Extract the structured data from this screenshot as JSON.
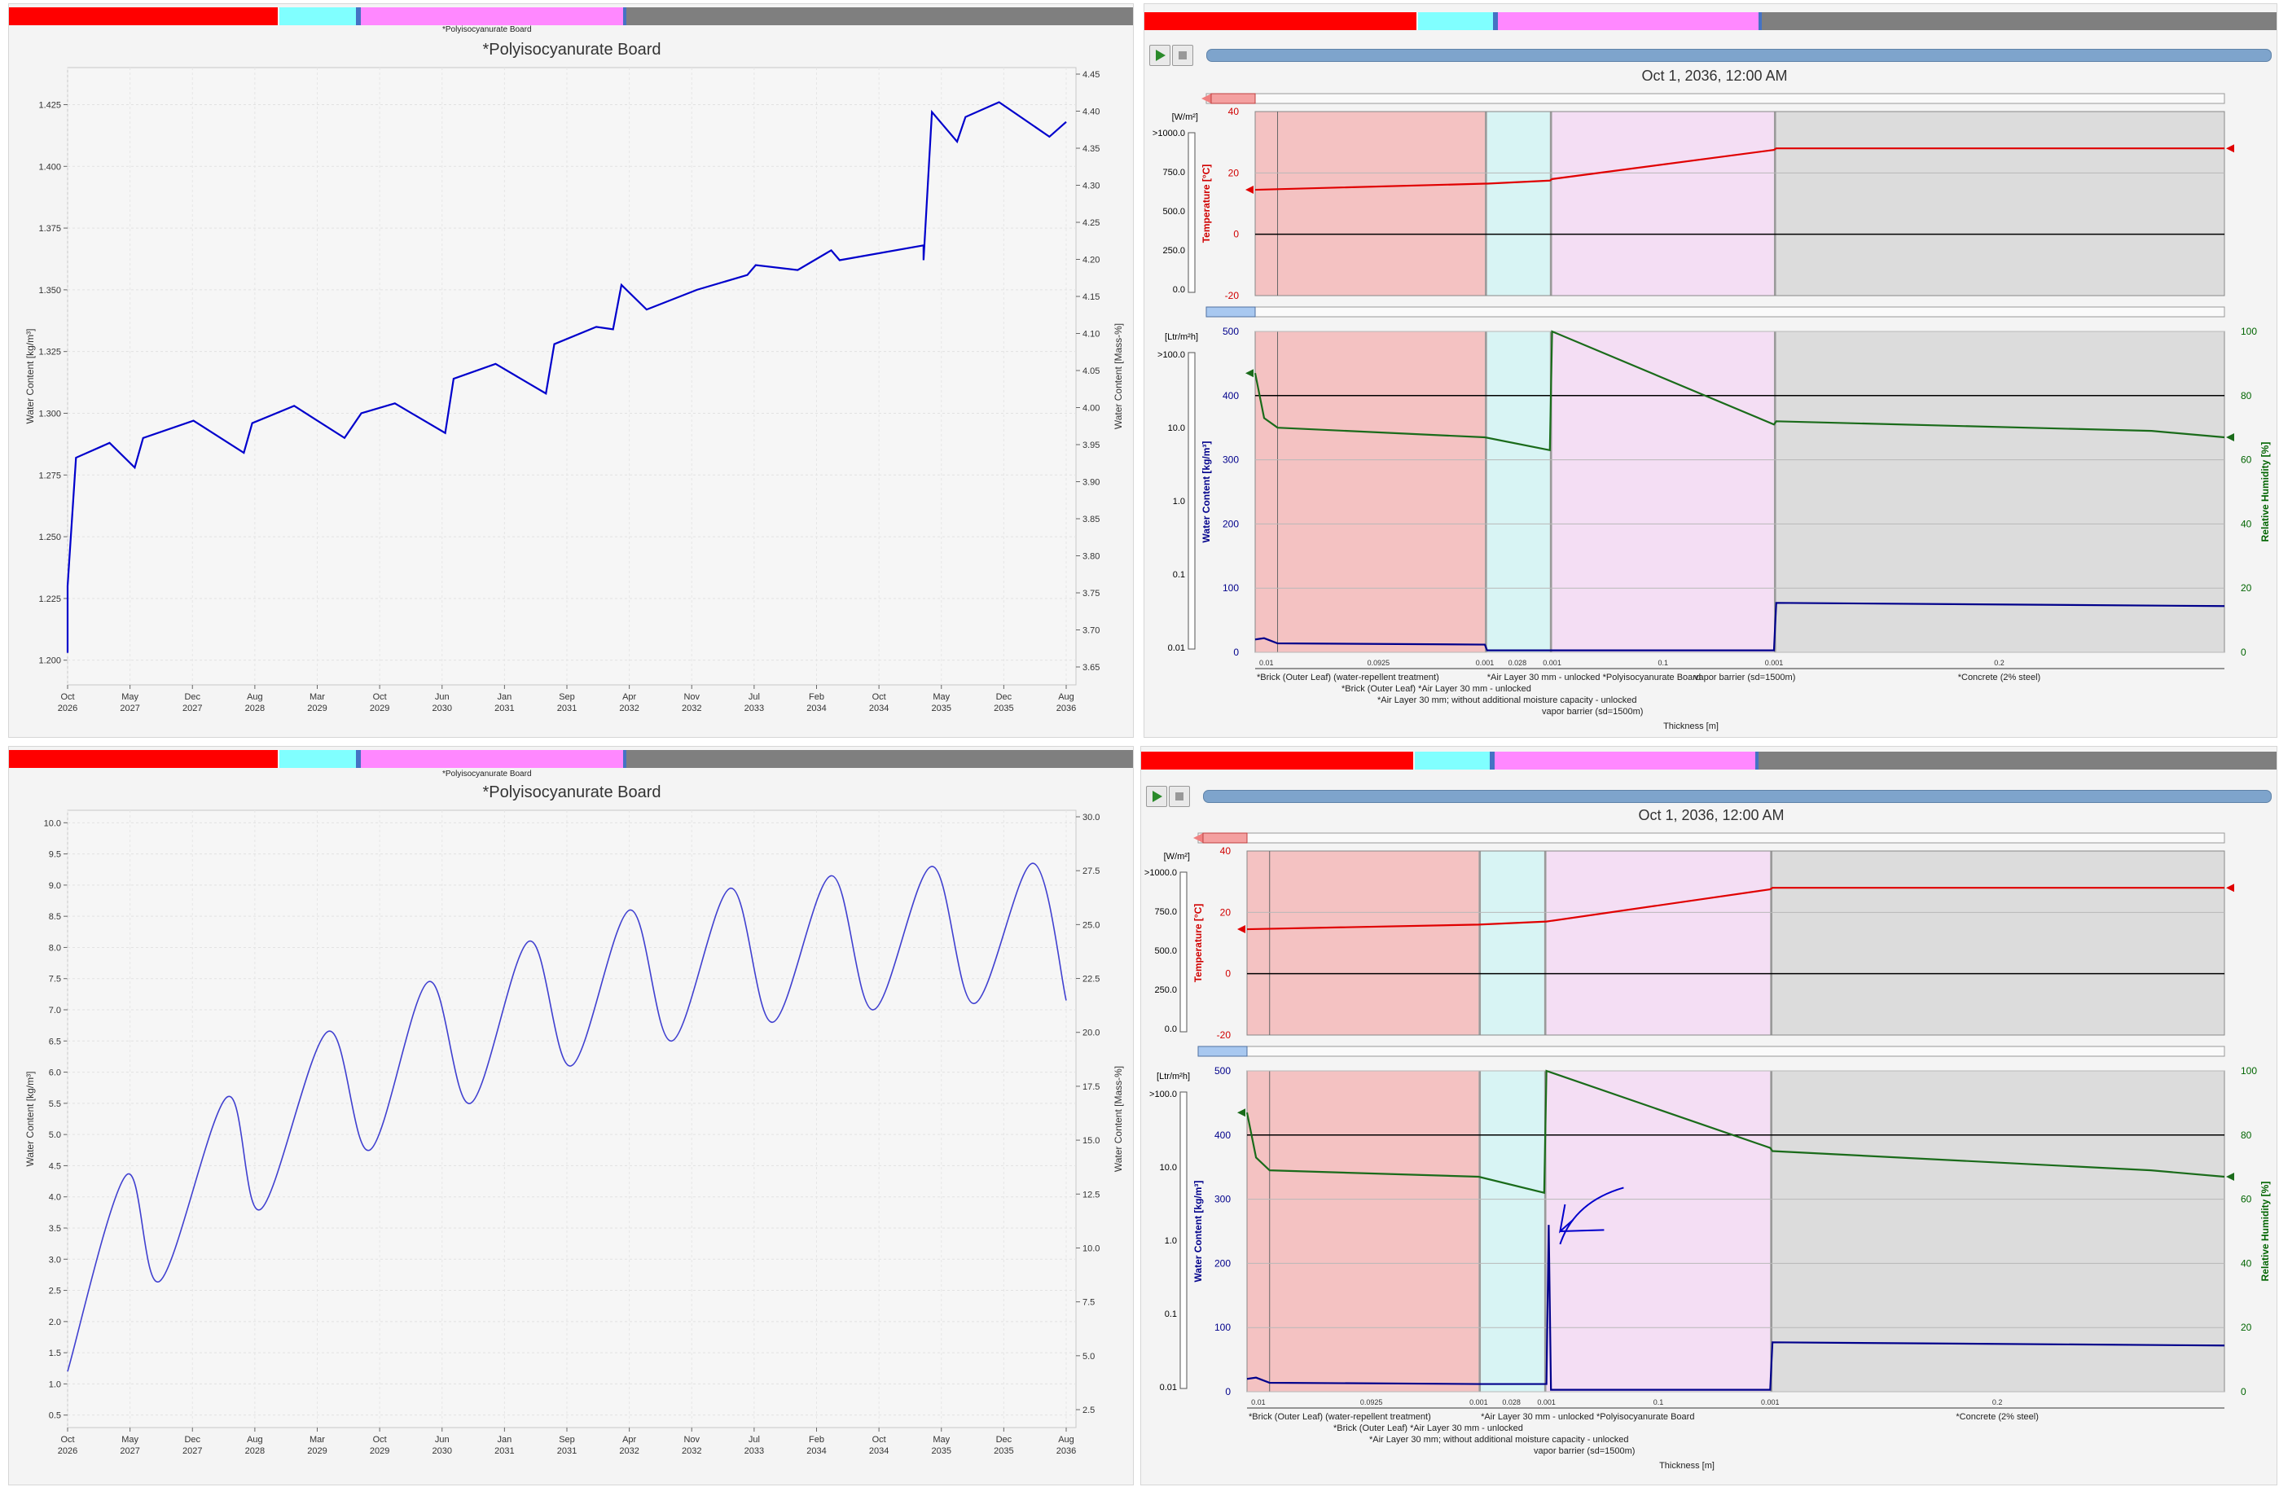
{
  "layer_colors": {
    "brick": "#ff0000",
    "air": "#80ffff",
    "board": "#ff88ff",
    "gap": "#4472c4",
    "concrete": "#7f7f7f"
  },
  "board_short_label": "*Polyisocyanurate Board",
  "time_series_top": {
    "title": "*Polyisocyanurate Board",
    "ylabel_left": "Water Content [kg/m³]",
    "ylabel_right": "Water Content [Mass-%]",
    "left_ticks": [
      "1.200",
      "1.225",
      "1.250",
      "1.275",
      "1.300",
      "1.325",
      "1.350",
      "1.375",
      "1.400",
      "1.425"
    ],
    "right_ticks": [
      "3.65",
      "3.70",
      "3.75",
      "3.80",
      "3.85",
      "3.90",
      "3.95",
      "4.00",
      "4.05",
      "4.10",
      "4.15",
      "4.20",
      "4.25",
      "4.30",
      "4.35",
      "4.40",
      "4.45"
    ],
    "x_ticks": [
      [
        "Oct",
        "2026"
      ],
      [
        "May",
        "2027"
      ],
      [
        "Dec",
        "2027"
      ],
      [
        "Aug",
        "2028"
      ],
      [
        "Mar",
        "2029"
      ],
      [
        "Oct",
        "2029"
      ],
      [
        "Jun",
        "2030"
      ],
      [
        "Jan",
        "2031"
      ],
      [
        "Sep",
        "2031"
      ],
      [
        "Apr",
        "2032"
      ],
      [
        "Nov",
        "2032"
      ],
      [
        "Jul",
        "2033"
      ],
      [
        "Feb",
        "2034"
      ],
      [
        "Oct",
        "2034"
      ],
      [
        "May",
        "2035"
      ],
      [
        "Dec",
        "2035"
      ],
      [
        "Aug",
        "2036"
      ]
    ]
  },
  "time_series_bottom": {
    "title": "*Polyisocyanurate Board",
    "ylabel_left": "Water Content [kg/m³]",
    "ylabel_right": "Water Content [Mass-%]",
    "left_ticks": [
      "0.5",
      "1.0",
      "1.5",
      "2.0",
      "2.5",
      "3.0",
      "3.5",
      "4.0",
      "4.5",
      "5.0",
      "5.5",
      "6.0",
      "6.5",
      "7.0",
      "7.5",
      "8.0",
      "8.5",
      "9.0",
      "9.5",
      "10.0"
    ],
    "right_ticks": [
      "2.5",
      "5.0",
      "7.5",
      "10.0",
      "12.5",
      "15.0",
      "17.5",
      "20.0",
      "22.5",
      "25.0",
      "27.5",
      "30.0"
    ],
    "x_ticks": [
      [
        "Oct",
        "2026"
      ],
      [
        "May",
        "2027"
      ],
      [
        "Dec",
        "2027"
      ],
      [
        "Aug",
        "2028"
      ],
      [
        "Mar",
        "2029"
      ],
      [
        "Oct",
        "2029"
      ],
      [
        "Jun",
        "2030"
      ],
      [
        "Jan",
        "2031"
      ],
      [
        "Sep",
        "2031"
      ],
      [
        "Apr",
        "2032"
      ],
      [
        "Nov",
        "2032"
      ],
      [
        "Jul",
        "2033"
      ],
      [
        "Feb",
        "2034"
      ],
      [
        "Oct",
        "2034"
      ],
      [
        "May",
        "2035"
      ],
      [
        "Dec",
        "2035"
      ],
      [
        "Aug",
        "2036"
      ]
    ]
  },
  "profile": {
    "timestamp": "Oct 1, 2036, 12:00 AM",
    "heat_unit": "[W/m²]",
    "heat_ticks": [
      ">1000.0",
      "750.0",
      "500.0",
      "250.0",
      "0.0"
    ],
    "temp_label": "Temperature [°C]",
    "temp_ticks": [
      "40",
      "20",
      "0",
      "-20"
    ],
    "flux_unit": "[Ltr/m²h]",
    "flux_ticks": [
      ">100.0",
      "10.0",
      "1.0",
      "0.1",
      "0.01"
    ],
    "wc_label": "Water Content [kg/m³]",
    "wc_ticks": [
      "500",
      "400",
      "300",
      "200",
      "100",
      "0"
    ],
    "rh_label": "Relative Humidity [%]",
    "rh_ticks": [
      "100",
      "80",
      "60",
      "40",
      "20",
      "0"
    ],
    "thickness_label": "Thickness [m]",
    "dims": [
      "0.01",
      "0.0925",
      "0.001",
      "0.028",
      "0.001",
      "0.1",
      "0.001",
      "0.2"
    ],
    "layer_notes": [
      "*Brick (Outer Leaf) (water-repellent treatment)",
      "*Brick (Outer Leaf)  *Air Layer 30 mm - unlocked",
      "*Air Layer 30 mm; without additional moisture capacity - unlocked",
      "vapor barrier  (sd=1500m)",
      "*Air Layer 30 mm - unlocked *Polyisocyanurate Board",
      "*Concrete (2% steel)"
    ],
    "vapor_note_top": "vapor barrier  (sd=1500m)"
  },
  "chart_data": [
    {
      "type": "line",
      "title": "*Polyisocyanurate Board",
      "xlabel": "",
      "ylabel": "Water Content [kg/m³]",
      "ylabel_right": "Water Content [Mass-%]",
      "x": [
        "2026-10",
        "2026-10",
        "2026-11",
        "2027-03",
        "2027-06",
        "2027-07",
        "2028-01",
        "2028-07",
        "2028-08",
        "2029-01",
        "2029-07",
        "2029-09",
        "2030-01",
        "2030-07",
        "2030-08",
        "2031-01",
        "2031-07",
        "2031-08",
        "2032-01",
        "2032-03",
        "2032-04",
        "2032-07",
        "2033-01",
        "2033-07",
        "2033-08",
        "2034-01",
        "2034-05",
        "2034-06",
        "2035-04",
        "2035-04",
        "2035-05",
        "2035-08",
        "2035-09",
        "2036-01",
        "2036-07",
        "2036-09"
      ],
      "values": [
        1.203,
        1.23,
        1.282,
        1.288,
        1.278,
        1.29,
        1.297,
        1.284,
        1.296,
        1.303,
        1.29,
        1.3,
        1.304,
        1.292,
        1.314,
        1.32,
        1.308,
        1.328,
        1.335,
        1.334,
        1.352,
        1.342,
        1.35,
        1.356,
        1.36,
        1.358,
        1.366,
        1.362,
        1.368,
        1.362,
        1.422,
        1.41,
        1.42,
        1.426,
        1.412,
        1.418
      ],
      "ylim": [
        1.19,
        1.44
      ],
      "grid": true,
      "color": "#0000cc"
    },
    {
      "type": "line",
      "title": "*Polyisocyanurate Board",
      "xlabel": "",
      "ylabel": "Water Content [kg/m³]",
      "ylabel_right": "Water Content [Mass-%]",
      "x": [
        "2026-10",
        "2027-05",
        "2027-09",
        "2028-05",
        "2028-09",
        "2029-05",
        "2029-10",
        "2030-05",
        "2030-10",
        "2031-05",
        "2031-10",
        "2032-05",
        "2032-10",
        "2033-05",
        "2033-10",
        "2034-05",
        "2034-10",
        "2035-05",
        "2035-10",
        "2036-05",
        "2036-09"
      ],
      "values": [
        1.2,
        4.35,
        2.65,
        5.6,
        3.8,
        6.65,
        4.75,
        7.45,
        5.5,
        8.1,
        6.1,
        8.6,
        6.5,
        8.95,
        6.8,
        9.15,
        7.0,
        9.3,
        7.1,
        9.35,
        7.15
      ],
      "ylim": [
        0.3,
        10.2
      ],
      "grid": true,
      "color": "#4040d0"
    },
    {
      "type": "line",
      "title": "",
      "xlabel": "Thickness [m]",
      "series": [
        {
          "name": "Temperature [°C]",
          "x": [
            0.0,
            0.1025,
            0.1035,
            0.1315,
            0.1325,
            0.2315,
            0.2325,
            0.4325
          ],
          "values": [
            14.5,
            16.5,
            16.5,
            17.5,
            18.0,
            27.5,
            28.0,
            28.0
          ]
        },
        {
          "name": "Relative Humidity [%]",
          "x": [
            0.0,
            0.004,
            0.01,
            0.1025,
            0.1315,
            0.1325,
            0.2315,
            0.2325,
            0.4,
            0.4325
          ],
          "values": [
            87,
            73,
            70,
            67,
            63,
            100,
            71,
            72,
            69,
            67
          ]
        },
        {
          "name": "Water Content [kg/m³]",
          "x": [
            0.0,
            0.004,
            0.01,
            0.1025,
            0.1035,
            0.1325,
            0.2315,
            0.2325,
            0.4325
          ],
          "values": [
            20,
            22,
            14,
            12,
            3,
            3,
            3,
            77,
            72
          ]
        }
      ]
    },
    {
      "type": "line",
      "title": "",
      "xlabel": "Thickness [m]",
      "series": [
        {
          "name": "Temperature [°C]",
          "x": [
            0.0,
            0.1025,
            0.1325,
            0.2315,
            0.2325,
            0.4325
          ],
          "values": [
            14.5,
            16.0,
            17.0,
            27.5,
            28.0,
            28.0
          ]
        },
        {
          "name": "Relative Humidity [%]",
          "x": [
            0.0,
            0.004,
            0.01,
            0.1025,
            0.1315,
            0.1325,
            0.2315,
            0.2325,
            0.4,
            0.4325
          ],
          "values": [
            87,
            73,
            69,
            67,
            62,
            100,
            76,
            75,
            69,
            67
          ]
        },
        {
          "name": "Water Content [kg/m³]",
          "x": [
            0.0,
            0.004,
            0.01,
            0.1025,
            0.1325,
            0.1335,
            0.1345,
            0.2315,
            0.2325,
            0.4325
          ],
          "values": [
            20,
            22,
            14,
            12,
            12,
            260,
            3,
            3,
            77,
            72
          ]
        }
      ]
    }
  ]
}
